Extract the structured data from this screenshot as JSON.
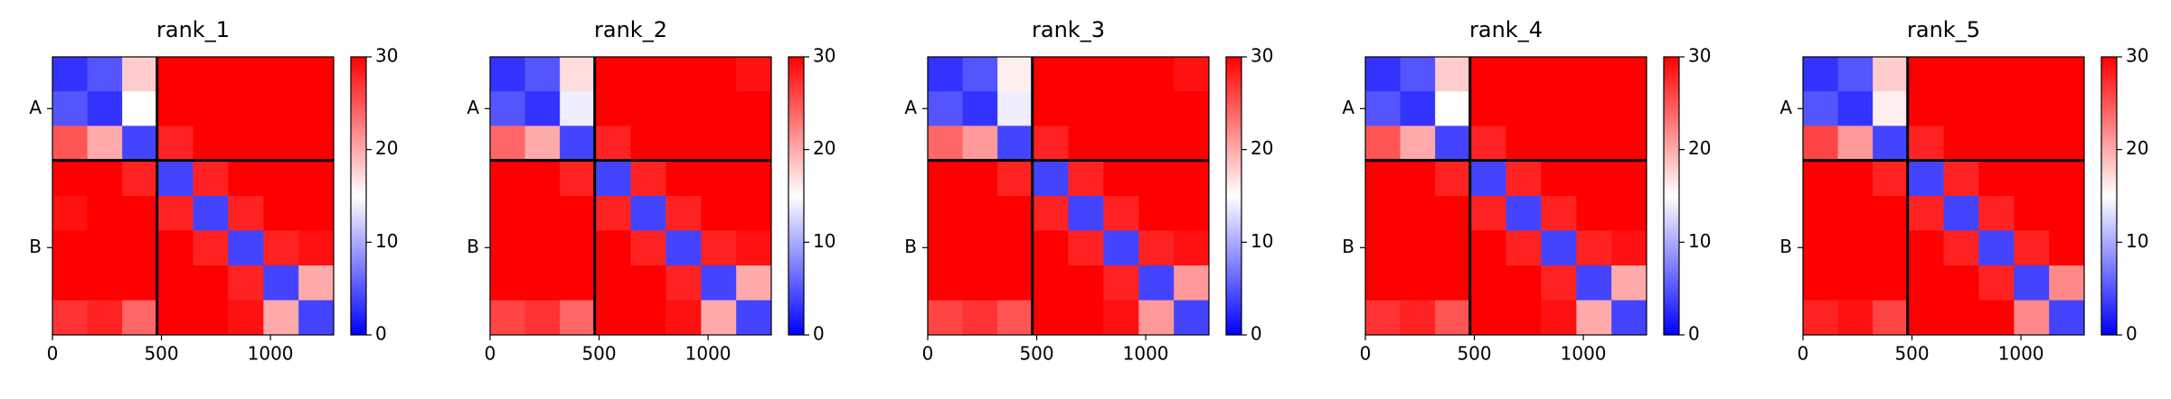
{
  "chart_data": [
    {
      "type": "heatmap",
      "title": "rank_1",
      "x_bins": [
        0,
        160,
        320,
        480,
        645,
        806,
        968,
        1129,
        1290
      ],
      "y_bins": [
        0,
        160,
        320,
        480,
        645,
        806,
        968,
        1129,
        1290
      ],
      "z": [
        [
          3,
          5,
          18,
          30,
          30,
          30,
          30,
          30
        ],
        [
          5,
          3,
          15,
          30,
          30,
          30,
          30,
          30
        ],
        [
          25,
          20,
          4,
          28,
          30,
          30,
          30,
          30
        ],
        [
          30,
          30,
          28,
          4,
          28,
          30,
          30,
          30
        ],
        [
          29,
          30,
          30,
          28,
          4,
          28,
          30,
          30
        ],
        [
          30,
          30,
          30,
          30,
          28,
          4,
          28,
          29
        ],
        [
          30,
          30,
          30,
          30,
          30,
          28,
          4,
          20
        ],
        [
          27,
          28,
          24,
          30,
          30,
          29,
          20,
          4
        ]
      ],
      "xlim": [
        0,
        1290
      ],
      "xticks": [
        0,
        500,
        1000
      ],
      "ylim": [
        1290,
        0
      ],
      "yticks": [
        {
          "value": 240,
          "label": "A"
        },
        {
          "value": 885,
          "label": "B"
        }
      ],
      "chain_breaks": [
        480
      ],
      "clim": [
        0,
        30
      ],
      "cticks": [
        0,
        10,
        20,
        30
      ],
      "colormap": [
        "#0000ff",
        "#ffffff",
        "#ff0000"
      ]
    },
    {
      "type": "heatmap",
      "title": "rank_2",
      "x_bins": [
        0,
        160,
        320,
        480,
        645,
        806,
        968,
        1129,
        1290
      ],
      "y_bins": [
        0,
        160,
        320,
        480,
        645,
        806,
        968,
        1129,
        1290
      ],
      "z": [
        [
          3,
          5,
          17,
          30,
          30,
          30,
          30,
          29
        ],
        [
          5,
          3,
          14,
          30,
          30,
          30,
          30,
          30
        ],
        [
          24,
          20,
          4,
          28,
          30,
          30,
          30,
          30
        ],
        [
          30,
          30,
          28,
          4,
          28,
          30,
          30,
          30
        ],
        [
          30,
          30,
          30,
          28,
          4,
          28,
          30,
          30
        ],
        [
          30,
          30,
          30,
          30,
          28,
          4,
          28,
          29
        ],
        [
          30,
          30,
          30,
          30,
          30,
          28,
          4,
          20
        ],
        [
          26,
          27,
          24,
          30,
          30,
          29,
          20,
          4
        ]
      ],
      "xlim": [
        0,
        1290
      ],
      "xticks": [
        0,
        500,
        1000
      ],
      "ylim": [
        1290,
        0
      ],
      "yticks": [
        {
          "value": 240,
          "label": "A"
        },
        {
          "value": 885,
          "label": "B"
        }
      ],
      "chain_breaks": [
        480
      ],
      "clim": [
        0,
        30
      ],
      "cticks": [
        0,
        10,
        20,
        30
      ],
      "colormap": [
        "#0000ff",
        "#ffffff",
        "#ff0000"
      ]
    },
    {
      "type": "heatmap",
      "title": "rank_3",
      "x_bins": [
        0,
        160,
        320,
        480,
        645,
        806,
        968,
        1129,
        1290
      ],
      "y_bins": [
        0,
        160,
        320,
        480,
        645,
        806,
        968,
        1129,
        1290
      ],
      "z": [
        [
          3,
          5,
          16,
          30,
          30,
          30,
          30,
          29
        ],
        [
          5,
          3,
          14,
          30,
          30,
          30,
          30,
          30
        ],
        [
          24,
          21,
          4,
          28,
          30,
          30,
          30,
          30
        ],
        [
          30,
          30,
          28,
          4,
          28,
          30,
          30,
          30
        ],
        [
          30,
          30,
          30,
          28,
          4,
          28,
          30,
          30
        ],
        [
          30,
          30,
          30,
          30,
          28,
          4,
          28,
          29
        ],
        [
          30,
          30,
          30,
          30,
          30,
          28,
          4,
          21
        ],
        [
          26,
          27,
          25,
          30,
          30,
          29,
          21,
          4
        ]
      ],
      "xlim": [
        0,
        1290
      ],
      "xticks": [
        0,
        500,
        1000
      ],
      "ylim": [
        1290,
        0
      ],
      "yticks": [
        {
          "value": 240,
          "label": "A"
        },
        {
          "value": 885,
          "label": "B"
        }
      ],
      "chain_breaks": [
        480
      ],
      "clim": [
        0,
        30
      ],
      "cticks": [
        0,
        10,
        20,
        30
      ],
      "colormap": [
        "#0000ff",
        "#ffffff",
        "#ff0000"
      ]
    },
    {
      "type": "heatmap",
      "title": "rank_4",
      "x_bins": [
        0,
        160,
        320,
        480,
        645,
        806,
        968,
        1129,
        1290
      ],
      "y_bins": [
        0,
        160,
        320,
        480,
        645,
        806,
        968,
        1129,
        1290
      ],
      "z": [
        [
          3,
          5,
          18,
          30,
          30,
          30,
          30,
          30
        ],
        [
          5,
          3,
          15,
          30,
          30,
          30,
          30,
          30
        ],
        [
          25,
          20,
          4,
          28,
          30,
          30,
          30,
          30
        ],
        [
          30,
          30,
          28,
          4,
          28,
          30,
          30,
          30
        ],
        [
          30,
          30,
          30,
          28,
          4,
          28,
          30,
          30
        ],
        [
          30,
          30,
          30,
          30,
          28,
          4,
          28,
          29
        ],
        [
          30,
          30,
          30,
          30,
          30,
          28,
          4,
          20
        ],
        [
          27,
          28,
          25,
          30,
          30,
          29,
          20,
          4
        ]
      ],
      "xlim": [
        0,
        1290
      ],
      "xticks": [
        0,
        500,
        1000
      ],
      "ylim": [
        1290,
        0
      ],
      "yticks": [
        {
          "value": 240,
          "label": "A"
        },
        {
          "value": 885,
          "label": "B"
        }
      ],
      "chain_breaks": [
        480
      ],
      "clim": [
        0,
        30
      ],
      "cticks": [
        0,
        10,
        20,
        30
      ],
      "colormap": [
        "#0000ff",
        "#ffffff",
        "#ff0000"
      ]
    },
    {
      "type": "heatmap",
      "title": "rank_5",
      "x_bins": [
        0,
        160,
        320,
        480,
        645,
        806,
        968,
        1129,
        1290
      ],
      "y_bins": [
        0,
        160,
        320,
        480,
        645,
        806,
        968,
        1129,
        1290
      ],
      "z": [
        [
          3,
          5,
          18,
          30,
          30,
          30,
          30,
          30
        ],
        [
          5,
          3,
          16,
          30,
          30,
          30,
          30,
          30
        ],
        [
          26,
          21,
          4,
          28,
          30,
          30,
          30,
          30
        ],
        [
          30,
          30,
          28,
          4,
          28,
          30,
          30,
          30
        ],
        [
          30,
          30,
          30,
          28,
          4,
          28,
          30,
          30
        ],
        [
          30,
          30,
          30,
          30,
          28,
          4,
          28,
          30
        ],
        [
          30,
          30,
          30,
          30,
          30,
          28,
          4,
          22
        ],
        [
          28,
          29,
          26,
          30,
          30,
          30,
          22,
          4
        ]
      ],
      "xlim": [
        0,
        1290
      ],
      "xticks": [
        0,
        500,
        1000
      ],
      "ylim": [
        1290,
        0
      ],
      "yticks": [
        {
          "value": 240,
          "label": "A"
        },
        {
          "value": 885,
          "label": "B"
        }
      ],
      "chain_breaks": [
        480
      ],
      "clim": [
        0,
        30
      ],
      "cticks": [
        0,
        10,
        20,
        30
      ],
      "colormap": [
        "#0000ff",
        "#ffffff",
        "#ff0000"
      ]
    }
  ]
}
